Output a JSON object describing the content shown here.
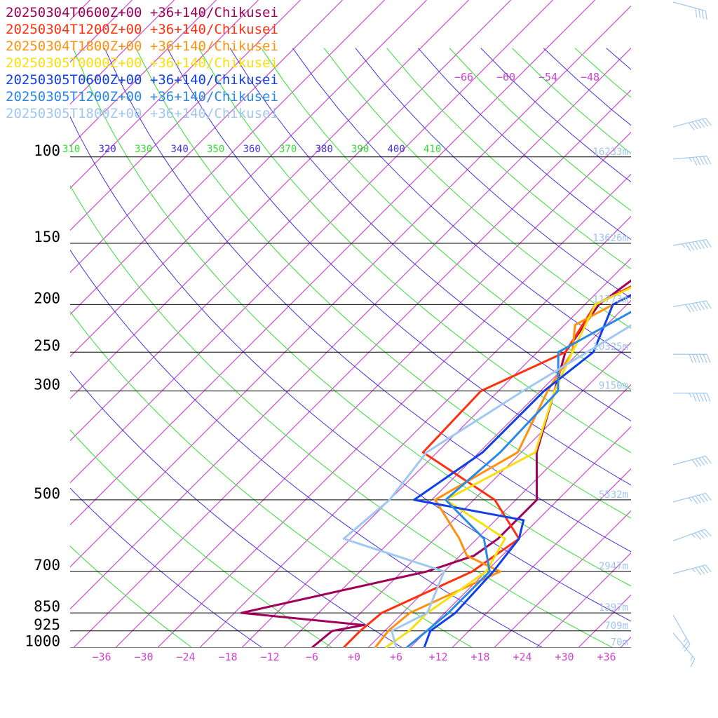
{
  "chart_data": {
    "type": "line",
    "subtype": "skew-T log-P sounding",
    "xlabel": "",
    "ylabel": "",
    "xlim": [
      -40,
      40
    ],
    "ylim": [
      1000,
      72
    ],
    "pressure_ticks": [
      {
        "p": 100,
        "label": "100"
      },
      {
        "p": 150,
        "label": "150"
      },
      {
        "p": 200,
        "label": "200"
      },
      {
        "p": 250,
        "label": "250"
      },
      {
        "p": 300,
        "label": "300"
      },
      {
        "p": 500,
        "label": "500"
      },
      {
        "p": 700,
        "label": "700"
      },
      {
        "p": 850,
        "label": "850"
      },
      {
        "p": 925,
        "label": "925"
      },
      {
        "p": 1000,
        "label": "1000"
      }
    ],
    "temperature_ticks": [
      {
        "t": -36,
        "label": "−36"
      },
      {
        "t": -30,
        "label": "−30"
      },
      {
        "t": -24,
        "label": "−24"
      },
      {
        "t": -18,
        "label": "−18"
      },
      {
        "t": -12,
        "label": "−12"
      },
      {
        "t": -6,
        "label": "−6"
      },
      {
        "t": 0,
        "label": "+0"
      },
      {
        "t": 6,
        "label": "+6"
      },
      {
        "t": 12,
        "label": "+12"
      },
      {
        "t": 18,
        "label": "+18"
      },
      {
        "t": 24,
        "label": "+24"
      },
      {
        "t": 30,
        "label": "+30"
      },
      {
        "t": 36,
        "label": "+36"
      }
    ],
    "upper_temperature_labels": [
      "−66",
      "−60",
      "−54",
      "−48"
    ],
    "theta_labels": [
      "310",
      "320",
      "330",
      "340",
      "350",
      "360",
      "370",
      "380",
      "390",
      "400",
      "410"
    ],
    "height_labels": [
      {
        "p": 100,
        "label": "16233m"
      },
      {
        "p": 150,
        "label": "13626m"
      },
      {
        "p": 200,
        "label": "11773m"
      },
      {
        "p": 250,
        "label": "10325m"
      },
      {
        "p": 300,
        "label": "9150m"
      },
      {
        "p": 500,
        "label": "5532m"
      },
      {
        "p": 700,
        "label": "2947m"
      },
      {
        "p": 850,
        "label": "1397m"
      },
      {
        "p": 925,
        "label": "709m"
      },
      {
        "p": 1000,
        "label": "70m"
      }
    ],
    "grid": true,
    "legend_position": "top-left",
    "series": [
      {
        "name": "20250304T0600Z+00 +36+140/Chikusei",
        "color": "#a0005a",
        "points": [
          [
            1000,
            -6
          ],
          [
            925,
            -5.5
          ],
          [
            900,
            -1.8
          ],
          [
            850,
            -21
          ],
          [
            700,
            -0.5
          ],
          [
            650,
            4
          ],
          [
            600,
            5
          ],
          [
            500,
            5
          ],
          [
            400,
            -1.8
          ],
          [
            300,
            -8
          ],
          [
            250,
            -12
          ],
          [
            200,
            -14
          ],
          [
            165,
            -12
          ],
          [
            150,
            -4
          ],
          [
            110,
            4
          ],
          [
            100,
            6
          ],
          [
            90,
            12
          ],
          [
            72,
            43
          ]
        ]
      },
      {
        "name": "20250304T1200Z+00 +36+140/Chikusei",
        "color": "#ff3010",
        "points": [
          [
            1000,
            -1.5
          ],
          [
            925,
            -1.5
          ],
          [
            850,
            -1
          ],
          [
            700,
            6
          ],
          [
            600,
            8
          ],
          [
            500,
            -1
          ],
          [
            400,
            -18
          ],
          [
            300,
            -18.5
          ],
          [
            250,
            -12
          ],
          [
            200,
            -14.5
          ],
          [
            150,
            -6
          ],
          [
            100,
            12.5
          ],
          [
            72,
            43
          ]
        ]
      },
      {
        "name": "20250304T1800Z+00 +36+140/Chikusei",
        "color": "#ff9010",
        "points": [
          [
            1000,
            3
          ],
          [
            925,
            2.5
          ],
          [
            850,
            3
          ],
          [
            700,
            10
          ],
          [
            650,
            3
          ],
          [
            600,
            -0.5
          ],
          [
            500,
            -9.5
          ],
          [
            400,
            -4.5
          ],
          [
            300,
            -9
          ],
          [
            250,
            -11
          ],
          [
            220,
            -14.5
          ],
          [
            200,
            -12
          ],
          [
            150,
            -3
          ],
          [
            100,
            10
          ],
          [
            72,
            43
          ]
        ]
      },
      {
        "name": "20250305T0000Z+00 +36+140/Chikusei",
        "color": "#f8e010",
        "points": [
          [
            1000,
            4.5
          ],
          [
            925,
            5.5
          ],
          [
            850,
            5.5
          ],
          [
            700,
            8
          ],
          [
            600,
            6
          ],
          [
            500,
            -8
          ],
          [
            400,
            -2
          ],
          [
            300,
            -8
          ],
          [
            250,
            -11
          ],
          [
            200,
            -14.5
          ],
          [
            170,
            -9
          ],
          [
            150,
            -3
          ],
          [
            100,
            9.5
          ],
          [
            72,
            43
          ]
        ]
      },
      {
        "name": "20250305T0600Z+00 +36+140/Chikusei",
        "color": "#1040e8",
        "points": [
          [
            1000,
            10
          ],
          [
            925,
            8.5
          ],
          [
            850,
            9.5
          ],
          [
            700,
            9
          ],
          [
            600,
            8
          ],
          [
            550,
            6
          ],
          [
            500,
            -12.5
          ],
          [
            400,
            -9.5
          ],
          [
            300,
            -9.5
          ],
          [
            250,
            -8
          ],
          [
            200,
            -12
          ],
          [
            150,
            -4
          ],
          [
            100,
            13
          ],
          [
            85,
            12
          ],
          [
            72,
            43
          ]
        ]
      },
      {
        "name": "20250305T1200Z+00 +36+140/Chikusei",
        "color": "#2a88e8",
        "points": [
          [
            1000,
            7.5
          ],
          [
            925,
            8
          ],
          [
            850,
            8.5
          ],
          [
            700,
            8.5
          ],
          [
            600,
            3
          ],
          [
            500,
            -8
          ],
          [
            400,
            -7
          ],
          [
            300,
            -7.5
          ],
          [
            250,
            -13
          ],
          [
            200,
            -7.5
          ],
          [
            150,
            -1
          ],
          [
            100,
            13
          ],
          [
            75,
            38
          ],
          [
            72,
            43
          ]
        ]
      },
      {
        "name": "20250305T1800Z+00 +36+140/Chikusei",
        "color": "#a0c8f0",
        "points": [
          [
            1000,
            6
          ],
          [
            925,
            3
          ],
          [
            850,
            5.5
          ],
          [
            700,
            2
          ],
          [
            600,
            -17
          ],
          [
            500,
            -16
          ],
          [
            400,
            -17.5
          ],
          [
            300,
            -12.5
          ],
          [
            200,
            -4.5
          ],
          [
            150,
            5
          ],
          [
            100,
            16
          ],
          [
            72,
            43
          ]
        ]
      }
    ],
    "wind_barbs": [
      {
        "p": 72,
        "dir": 285,
        "kt": 40
      },
      {
        "p": 86,
        "dir": 255,
        "kt": 60
      },
      {
        "p": 100,
        "dir": 265,
        "kt": 55
      },
      {
        "p": 150,
        "dir": 260,
        "kt": 75
      },
      {
        "p": 200,
        "dir": 260,
        "kt": 70
      },
      {
        "p": 250,
        "dir": 270,
        "kt": 60
      },
      {
        "p": 300,
        "dir": 270,
        "kt": 55
      },
      {
        "p": 420,
        "dir": 255,
        "kt": 50
      },
      {
        "p": 500,
        "dir": 255,
        "kt": 55
      },
      {
        "p": 600,
        "dir": 250,
        "kt": 45
      },
      {
        "p": 700,
        "dir": 255,
        "kt": 45
      },
      {
        "p": 850,
        "dir": 330,
        "kt": 25
      },
      {
        "p": 925,
        "dir": 320,
        "kt": 15
      }
    ]
  },
  "colors": {
    "isotherm": "#cc33cc",
    "dry_adiabat": "#4433dd",
    "dry_adiabat_alt": "#33dd33",
    "isobar": "#000000",
    "height_label": "#a0c4ee",
    "temp_label": "#cc44cc",
    "theta_label_a": "#4433dd",
    "theta_label_b": "#33dd33",
    "barb": "#a0c8f0"
  }
}
